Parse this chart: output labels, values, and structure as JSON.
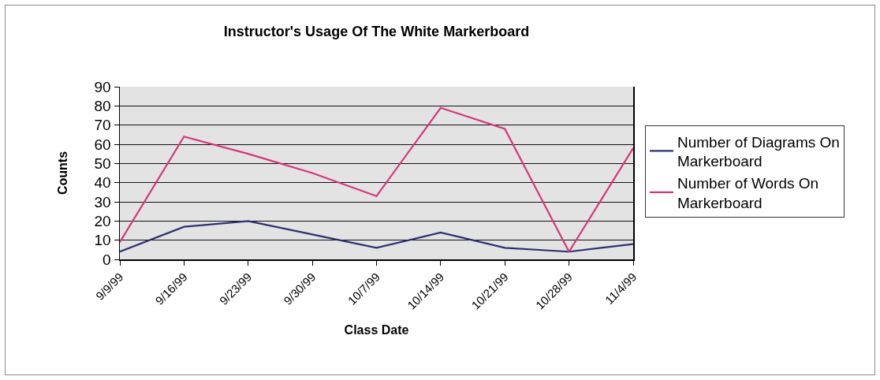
{
  "chart_data": {
    "type": "line",
    "title": "Instructor's Usage Of The White Markerboard",
    "xlabel": "Class Date",
    "ylabel": "Counts",
    "categories": [
      "9/9/99",
      "9/16/99",
      "9/23/99",
      "9/30/99",
      "10/7/99",
      "10/14/99",
      "10/21/99",
      "10/28/99",
      "11/4/99"
    ],
    "series": [
      {
        "name": "Number of Diagrams On Markerboard",
        "color": "#2e3170",
        "values": [
          4,
          17,
          20,
          13,
          6,
          14,
          6,
          4,
          8
        ]
      },
      {
        "name": "Number of Words On Markerboard",
        "color": "#d2387a",
        "values": [
          9,
          64,
          55,
          45,
          33,
          79,
          68,
          4,
          58
        ]
      }
    ],
    "ylim": [
      0,
      90
    ],
    "yticks": [
      0,
      10,
      20,
      30,
      40,
      50,
      60,
      70,
      80,
      90
    ],
    "grid": "y",
    "legend": "right",
    "marker": "none",
    "line_style": "solid"
  }
}
